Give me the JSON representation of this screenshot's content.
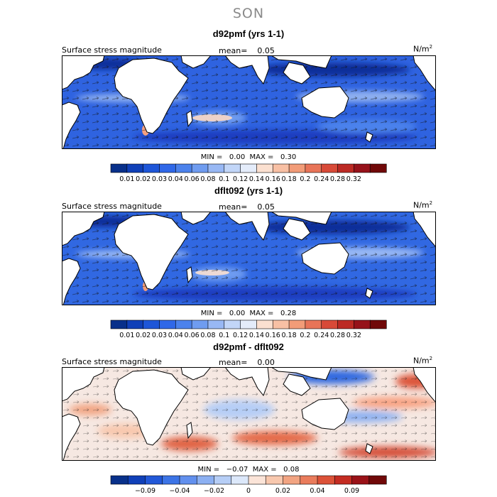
{
  "season": "SON",
  "panels": [
    {
      "title": "d92pmf (yrs 1-1)",
      "variable": "Surface stress magnitude",
      "mean_label": "mean=",
      "mean_value": "0.05",
      "units": "N/m",
      "units_exp": "2",
      "min_label": "MIN =",
      "min_value": "0.00",
      "max_label": "MAX =",
      "max_value": "0.30",
      "colorbar": {
        "colors": [
          "#08308a",
          "#1040b8",
          "#1e56d8",
          "#3068e8",
          "#4c82ec",
          "#6f9cf0",
          "#98b8f4",
          "#c2d6f8",
          "#e4ecfa",
          "#fbe0d0",
          "#f8c0a4",
          "#f29c78",
          "#e87458",
          "#d84a38",
          "#bc2a24",
          "#96121a",
          "#700808"
        ],
        "ticks": [
          "0.01",
          "0.02",
          "0.03",
          "0.04",
          "0.06",
          "0.08",
          "0.1",
          "0.12",
          "0.14",
          "0.16",
          "0.18",
          "0.2",
          "0.24",
          "0.28",
          "0.32"
        ]
      }
    },
    {
      "title": "dflt092 (yrs 1-1)",
      "variable": "Surface stress magnitude",
      "mean_label": "mean=",
      "mean_value": "0.05",
      "units": "N/m",
      "units_exp": "2",
      "min_label": "MIN =",
      "min_value": "0.00",
      "max_label": "MAX =",
      "max_value": "0.28",
      "colorbar": {
        "colors": [
          "#08308a",
          "#1040b8",
          "#1e56d8",
          "#3068e8",
          "#4c82ec",
          "#6f9cf0",
          "#98b8f4",
          "#c2d6f8",
          "#e4ecfa",
          "#fbe0d0",
          "#f8c0a4",
          "#f29c78",
          "#e87458",
          "#d84a38",
          "#bc2a24",
          "#96121a",
          "#700808"
        ],
        "ticks": [
          "0.01",
          "0.02",
          "0.03",
          "0.04",
          "0.06",
          "0.08",
          "0.1",
          "0.12",
          "0.14",
          "0.16",
          "0.18",
          "0.2",
          "0.24",
          "0.28",
          "0.32"
        ]
      }
    },
    {
      "title": "d92pmf - dflt092",
      "variable": "Surface stress magnitude",
      "mean_label": "mean=",
      "mean_value": "0.00",
      "units": "N/m",
      "units_exp": "2",
      "min_label": "MIN =",
      "min_value": "−0.07",
      "max_label": "MAX =",
      "max_value": "0.08",
      "colorbar": {
        "colors": [
          "#08308a",
          "#1040b8",
          "#2258d8",
          "#3c74e6",
          "#6290ee",
          "#8cb0f2",
          "#b6cef6",
          "#dce8fa",
          "#fbe4d8",
          "#f8c8ae",
          "#f2a482",
          "#ea7c5c",
          "#dc5238",
          "#c42c22",
          "#9a1218",
          "#700808"
        ],
        "ticks": [
          "−0.09",
          "−0.04",
          "−0.02",
          "0",
          "0.02",
          "0.04",
          "0.09"
        ]
      }
    }
  ]
}
